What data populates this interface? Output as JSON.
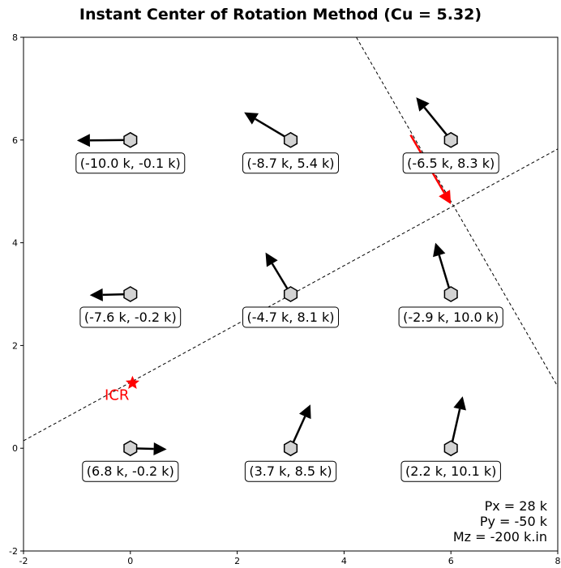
{
  "chart_data": {
    "type": "scatter",
    "title": "Instant Center of Rotation Method (Cu = 5.32)",
    "xlim": [
      -2,
      8
    ],
    "ylim": [
      -2,
      8
    ],
    "xticks": [
      -2,
      0,
      2,
      4,
      6,
      8
    ],
    "yticks": [
      -2,
      0,
      2,
      4,
      6,
      8
    ],
    "grid": false,
    "bolts": [
      {
        "x": 0,
        "y": 6,
        "label": "(-10.0 k, -0.1 k)",
        "fx": -10.0,
        "fy": -0.1
      },
      {
        "x": 3,
        "y": 6,
        "label": "(-8.7 k, 5.4 k)",
        "fx": -8.7,
        "fy": 5.4
      },
      {
        "x": 6,
        "y": 6,
        "label": "(-6.5 k, 8.3 k)",
        "fx": -6.5,
        "fy": 8.3
      },
      {
        "x": 0,
        "y": 3,
        "label": "(-7.6 k, -0.2 k)",
        "fx": -7.6,
        "fy": -0.2
      },
      {
        "x": 3,
        "y": 3,
        "label": "(-4.7 k, 8.1 k)",
        "fx": -4.7,
        "fy": 8.1
      },
      {
        "x": 6,
        "y": 3,
        "label": "(-2.9 k, 10.0 k)",
        "fx": -2.9,
        "fy": 10.0
      },
      {
        "x": 0,
        "y": 0,
        "label": "(6.8 k, -0.2 k)",
        "fx": 6.8,
        "fy": -0.2
      },
      {
        "x": 3,
        "y": 0,
        "label": "(3.7 k, 8.5 k)",
        "fx": 3.7,
        "fy": 8.5
      },
      {
        "x": 6,
        "y": 0,
        "label": "(2.2 k, 10.1 k)",
        "fx": 2.2,
        "fy": 10.1
      }
    ],
    "icr": {
      "x": 0.04,
      "y": 1.27,
      "label": "ICR",
      "color": "#ff0000"
    },
    "centroid": {
      "x": 3,
      "y": 3
    },
    "applied_load": {
      "x": 6.0,
      "y": 4.75,
      "px": 28,
      "py": -50,
      "color": "#ff0000"
    },
    "dashed_lines": [
      {
        "from": [
          -2,
          0.146
        ],
        "to": [
          8,
          5.826
        ]
      },
      {
        "from": [
          4.23,
          8
        ],
        "to": [
          8,
          1.2
        ]
      }
    ],
    "load_text": [
      "Px = 28 k",
      "Py = -50 k",
      "Mz = -200 k.in"
    ],
    "arrow_scale": 0.1,
    "colors": {
      "bolt_fill": "#d3d3d3",
      "arrow": "#000000",
      "accent": "#ff0000"
    }
  }
}
